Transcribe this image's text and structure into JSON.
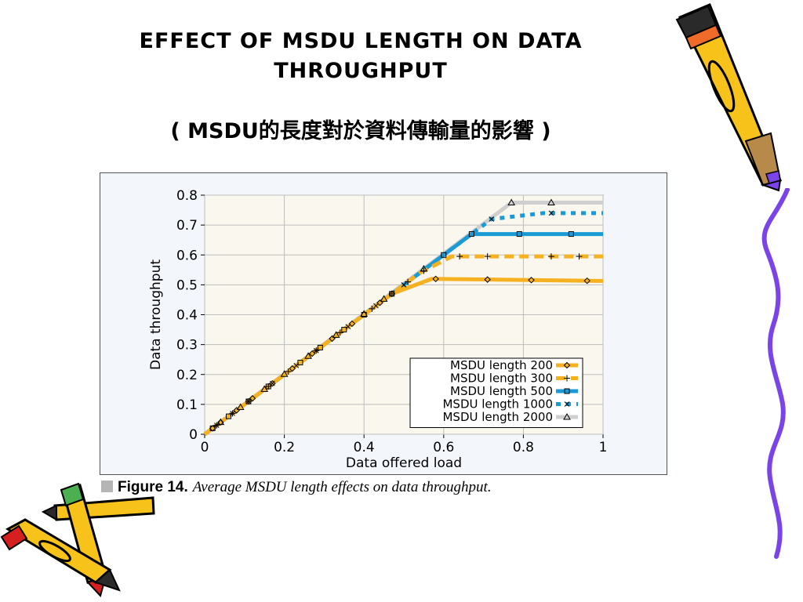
{
  "slide": {
    "title_line1": "EFFECT OF MSDU LENGTH ON DATA",
    "title_line2": "THROUGHPUT",
    "subtitle": "( MSDU的長度對於資料傳輸量的影響 )"
  },
  "figure": {
    "caption_label": "Figure 14.",
    "caption_text": "Average MSDU length effects on data throughput."
  },
  "colors": {
    "msdu200": "#f5b120",
    "msdu300": "#f5b120",
    "msdu500": "#1a9ad6",
    "msdu1000": "#1a9ad6",
    "msdu2000": "#cfcfcf",
    "plot_bg": "#faf7ee",
    "pencil_yellow": "#f7c21a",
    "wavy_line": "#7a44e8"
  },
  "chart_data": {
    "type": "line",
    "xlabel": "Data offered load",
    "ylabel": "Data throughput",
    "xlim": [
      0,
      1
    ],
    "ylim": [
      0,
      0.8
    ],
    "xticks": [
      "0",
      "0.2",
      "0.4",
      "0.6",
      "0.8",
      "1"
    ],
    "yticks": [
      "0",
      "0.1",
      "0.2",
      "0.3",
      "0.4",
      "0.5",
      "0.6",
      "0.7",
      "0.8"
    ],
    "grid": true,
    "legend_position": "bottom-right",
    "series": [
      {
        "name": "MSDU length 200",
        "dash": "solid",
        "marker": "diamond",
        "x": [
          0,
          0.47,
          0.57,
          1
        ],
        "y": [
          0,
          0.47,
          0.52,
          0.513
        ],
        "markers_x": [
          0.02,
          0.04,
          0.08,
          0.12,
          0.17,
          0.22,
          0.27,
          0.32,
          0.37,
          0.44,
          0.47,
          0.58,
          0.71,
          0.82,
          0.96
        ]
      },
      {
        "name": "MSDU length 300",
        "dash": "dashed",
        "marker": "plus",
        "x": [
          0,
          0.54,
          0.62,
          1
        ],
        "y": [
          0,
          0.54,
          0.595,
          0.595
        ],
        "markers_x": [
          0.03,
          0.07,
          0.11,
          0.16,
          0.21,
          0.28,
          0.34,
          0.42,
          0.47,
          0.51,
          0.55,
          0.64,
          0.71,
          0.87,
          0.94
        ]
      },
      {
        "name": "MSDU length 500",
        "dash": "solid",
        "marker": "square",
        "x": [
          0,
          0.6,
          0.67,
          1
        ],
        "y": [
          0,
          0.6,
          0.67,
          0.67
        ],
        "markers_x": [
          0.02,
          0.06,
          0.11,
          0.16,
          0.24,
          0.29,
          0.35,
          0.4,
          0.47,
          0.6,
          0.67,
          0.79,
          0.92
        ]
      },
      {
        "name": "MSDU length 1000",
        "dash": "dotted",
        "marker": "x",
        "x": [
          0,
          0.6,
          0.72,
          0.85,
          1
        ],
        "y": [
          0,
          0.6,
          0.72,
          0.74,
          0.74
        ],
        "markers_x": [
          0.03,
          0.07,
          0.11,
          0.17,
          0.23,
          0.28,
          0.36,
          0.43,
          0.5,
          0.72,
          0.87
        ]
      },
      {
        "name": "MSDU length 2000",
        "dash": "solid",
        "marker": "triangle",
        "x": [
          0,
          0.77,
          1
        ],
        "y": [
          0,
          0.775,
          0.775
        ],
        "markers_x": [
          0.04,
          0.09,
          0.15,
          0.2,
          0.26,
          0.33,
          0.4,
          0.45,
          0.55,
          0.77,
          0.87
        ]
      }
    ]
  }
}
